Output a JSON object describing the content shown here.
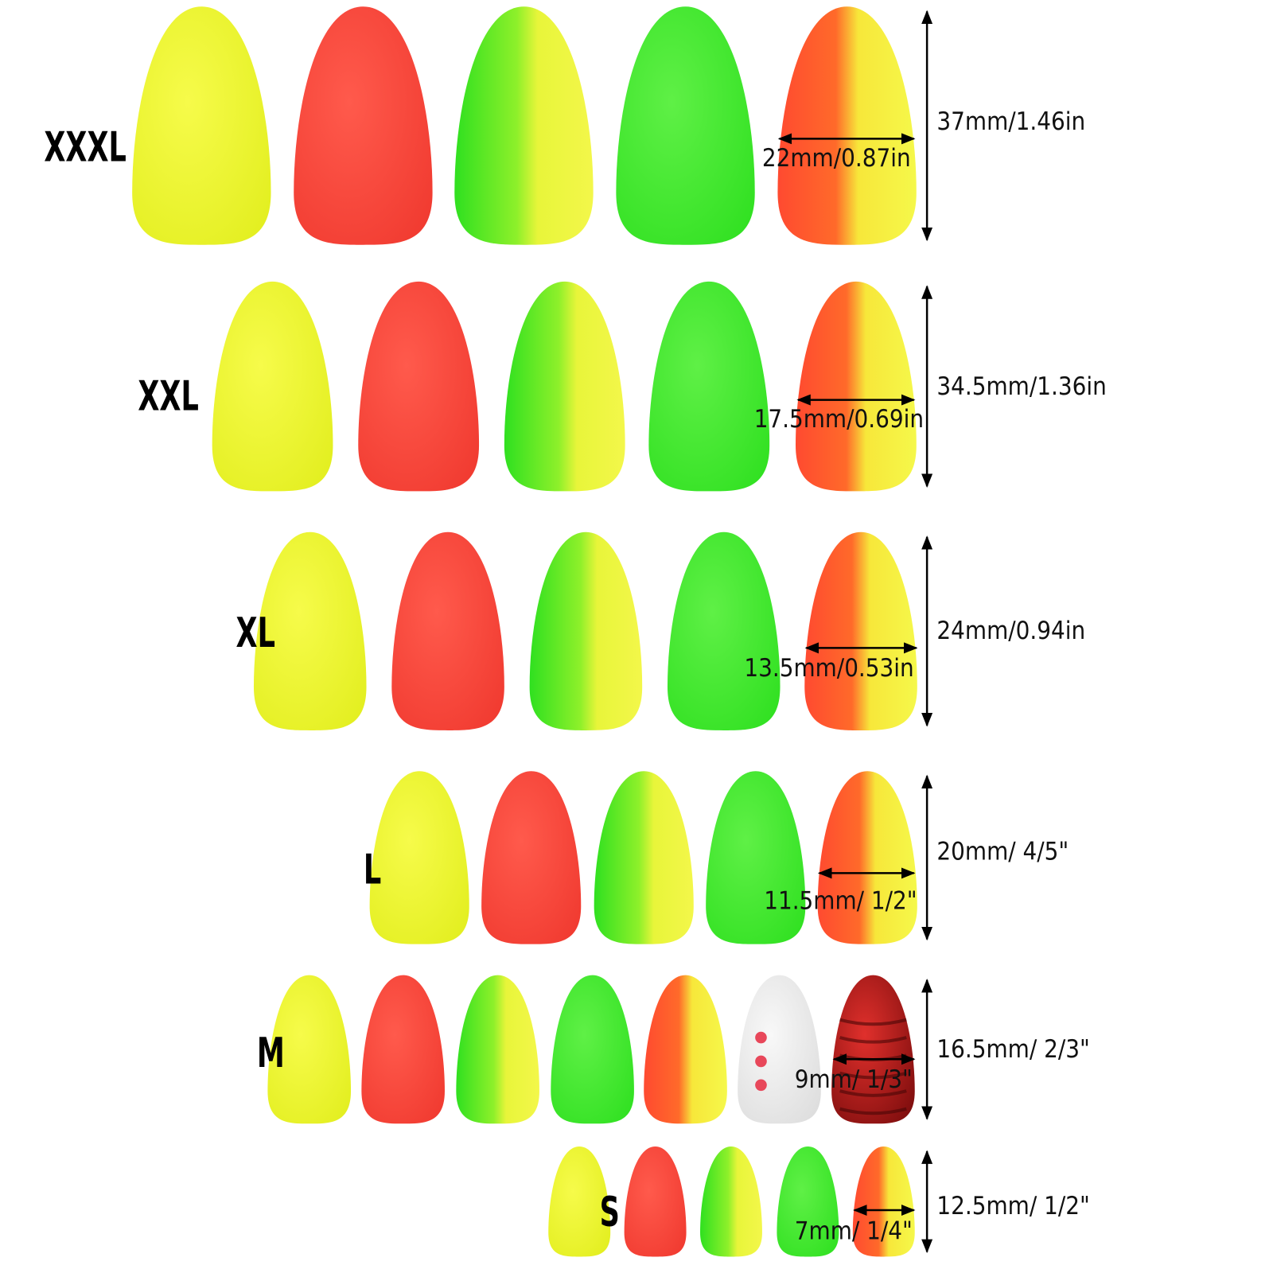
{
  "rows": [
    {
      "size": "XXXL",
      "height": "37mm/1.46in",
      "width": "22mm/0.87in"
    },
    {
      "size": "XXL",
      "height": "34.5mm/1.36in",
      "width": "17.5mm/0.69in"
    },
    {
      "size": "XL",
      "height": "24mm/0.94in",
      "width": "13.5mm/0.53in"
    },
    {
      "size": "L",
      "height": "20mm/ 4/5\"",
      "width": "11.5mm/ 1/2\""
    },
    {
      "size": "M",
      "height": "16.5mm/ 2/3\"",
      "width": "9mm/ 1/3\""
    },
    {
      "size": "S",
      "height": "12.5mm/ 1/2\"",
      "width": "7mm/ 1/4\""
    }
  ]
}
